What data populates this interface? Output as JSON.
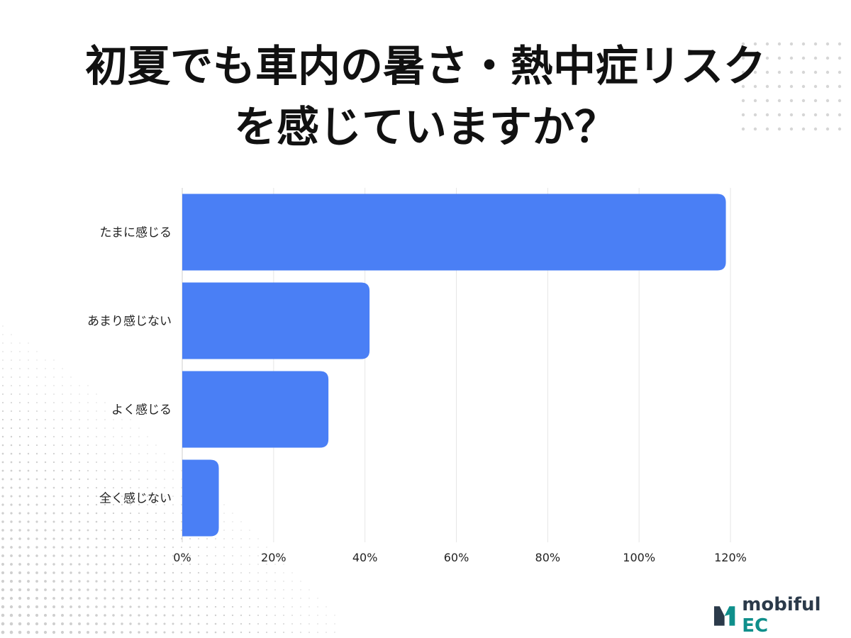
{
  "title_lines": [
    "初夏でも車内の暑さ・熱中症リスク",
    "を感じていますか？"
  ],
  "logo": {
    "brand": "mobiful",
    "suffix": "EC",
    "colors": {
      "dark": "#2b3a4a",
      "teal": "#0f8f8b"
    }
  },
  "chart_data": {
    "type": "bar",
    "orientation": "horizontal",
    "categories": [
      "たまに感じる",
      "あまり感じない",
      "よく感じる",
      "全く感じない"
    ],
    "values": [
      119,
      41,
      32,
      8
    ],
    "xlim": [
      0,
      120
    ],
    "xticks": [
      "0%",
      "20%",
      "40%",
      "60%",
      "80%",
      "100%",
      "120%"
    ],
    "grid": true,
    "bar_color": "#4a7ff5"
  }
}
